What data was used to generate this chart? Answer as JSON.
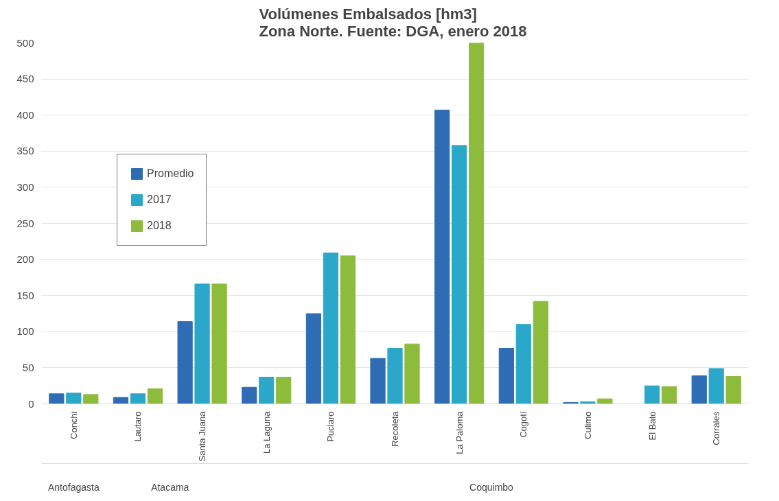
{
  "chart_data": {
    "type": "bar",
    "title": "Volúmenes Embalsados [hm3]\nZona Norte.  Fuente: DGA, enero 2018",
    "categories": [
      "Conchi",
      "Lautaro",
      "Santa Juana",
      "La Laguna",
      "Puclaro",
      "Recoleta",
      "La Paloma",
      "Cogotí",
      "Culimo",
      "El Bato",
      "Corrales"
    ],
    "series": [
      {
        "name": "Promedio",
        "color": "#2e6db4",
        "values": [
          14,
          9,
          114,
          23,
          125,
          63,
          407,
          77,
          2,
          null,
          39
        ]
      },
      {
        "name": "2017",
        "color": "#2aa7c9",
        "values": [
          15,
          14,
          166,
          37,
          209,
          77,
          358,
          110,
          3,
          25,
          49
        ]
      },
      {
        "name": "2018",
        "color": "#8dbb3c",
        "values": [
          13,
          21,
          166,
          37,
          205,
          83,
          500,
          142,
          7,
          24,
          38
        ]
      }
    ],
    "ylim": [
      0,
      500
    ],
    "yticks": [
      0,
      50,
      100,
      150,
      200,
      250,
      300,
      350,
      400,
      450,
      500
    ],
    "grid": "y",
    "legend": "top left",
    "annotations": [
      "Antofagasta",
      "Atacama",
      "Coquimbo"
    ]
  }
}
